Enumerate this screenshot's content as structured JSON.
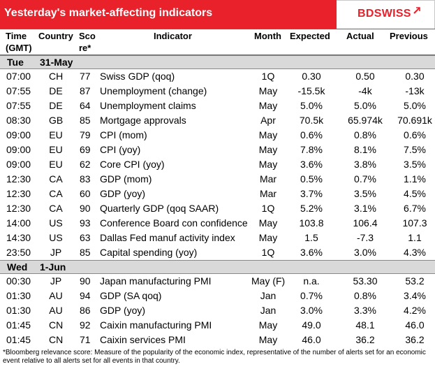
{
  "header": {
    "title": "Yesterday's market-affecting indicators",
    "logo_bd": "BD",
    "logo_swiss": "SWISS",
    "logo_icon": "swiss-arrow-icon"
  },
  "columns": {
    "time": [
      "Time",
      "(GMT)"
    ],
    "country": "Country",
    "score": [
      "Sco",
      "re*"
    ],
    "indicator": "Indicator",
    "month": "Month",
    "expected": "Expected",
    "actual": "Actual",
    "previous": "Previous"
  },
  "sections": [
    {
      "day": "Tue",
      "date": "31-May",
      "rows": [
        {
          "time": "07:00",
          "country": "CH",
          "score": "77",
          "indicator": "Swiss GDP (qoq)",
          "month": "1Q",
          "expected": "0.30",
          "actual": "0.50",
          "previous": "0.30"
        },
        {
          "time": "07:55",
          "country": "DE",
          "score": "87",
          "indicator": "Unemployment (change)",
          "month": "May",
          "expected": "-15.5k",
          "actual": "-4k",
          "previous": "-13k"
        },
        {
          "time": "07:55",
          "country": "DE",
          "score": "64",
          "indicator": "Unemployment claims",
          "month": "May",
          "expected": "5.0%",
          "actual": "5.0%",
          "previous": "5.0%"
        },
        {
          "time": "08:30",
          "country": "GB",
          "score": "85",
          "indicator": "Mortgage approvals",
          "month": "Apr",
          "expected": "70.5k",
          "actual": "65.974k",
          "previous": "70.691k"
        },
        {
          "time": "09:00",
          "country": "EU",
          "score": "79",
          "indicator": "CPI (mom)",
          "month": "May",
          "expected": "0.6%",
          "actual": "0.8%",
          "previous": "0.6%"
        },
        {
          "time": "09:00",
          "country": "EU",
          "score": "69",
          "indicator": "CPI (yoy)",
          "month": "May",
          "expected": "7.8%",
          "actual": "8.1%",
          "previous": "7.5%"
        },
        {
          "time": "09:00",
          "country": "EU",
          "score": "62",
          "indicator": "Core CPI (yoy)",
          "month": "May",
          "expected": "3.6%",
          "actual": "3.8%",
          "previous": "3.5%"
        },
        {
          "time": "12:30",
          "country": "CA",
          "score": "83",
          "indicator": "GDP (mom)",
          "month": "Mar",
          "expected": "0.5%",
          "actual": "0.7%",
          "previous": "1.1%"
        },
        {
          "time": "12:30",
          "country": "CA",
          "score": "60",
          "indicator": "GDP (yoy)",
          "month": "Mar",
          "expected": "3.7%",
          "actual": "3.5%",
          "previous": "4.5%"
        },
        {
          "time": "12:30",
          "country": "CA",
          "score": "90",
          "indicator": "Quarterly GDP (qoq SAAR)",
          "month": "1Q",
          "expected": "5.2%",
          "actual": "3.1%",
          "previous": "6.7%"
        },
        {
          "time": "14:00",
          "country": "US",
          "score": "93",
          "indicator": "Conference Board con confidence",
          "month": "May",
          "expected": "103.8",
          "actual": "106.4",
          "previous": "107.3"
        },
        {
          "time": "14:30",
          "country": "US",
          "score": "63",
          "indicator": "Dallas Fed manuf activity index",
          "month": "May",
          "expected": "1.5",
          "actual": "-7.3",
          "previous": "1.1"
        },
        {
          "time": "23:50",
          "country": "JP",
          "score": "85",
          "indicator": "Capital spending (yoy)",
          "month": "1Q",
          "expected": "3.6%",
          "actual": "3.0%",
          "previous": "4.3%"
        }
      ]
    },
    {
      "day": "Wed",
      "date": "1-Jun",
      "rows": [
        {
          "time": "00:30",
          "country": "JP",
          "score": "90",
          "indicator": "Japan manufacturing PMI",
          "month": "May (F)",
          "expected": "n.a.",
          "actual": "53.30",
          "previous": "53.2"
        },
        {
          "time": "01:30",
          "country": "AU",
          "score": "94",
          "indicator": "GDP (SA qoq)",
          "month": "Jan",
          "expected": "0.7%",
          "actual": "0.8%",
          "previous": "3.4%"
        },
        {
          "time": "01:30",
          "country": "AU",
          "score": "86",
          "indicator": "GDP (yoy)",
          "month": "Jan",
          "expected": "3.0%",
          "actual": "3.3%",
          "previous": "4.2%"
        },
        {
          "time": "01:45",
          "country": "CN",
          "score": "92",
          "indicator": "Caixin manufacturing PMI",
          "month": "May",
          "expected": "49.0",
          "actual": "48.1",
          "previous": "46.0"
        },
        {
          "time": "01:45",
          "country": "CN",
          "score": "71",
          "indicator": "Caixin services PMI",
          "month": "May",
          "expected": "46.0",
          "actual": "36.2",
          "previous": "36.2"
        }
      ]
    }
  ],
  "footer": "*Bloomberg relevance score:  Measure of the popularity of the economic index, representative of the number of alerts set for an economic event relative to all alerts set for all events in that country."
}
